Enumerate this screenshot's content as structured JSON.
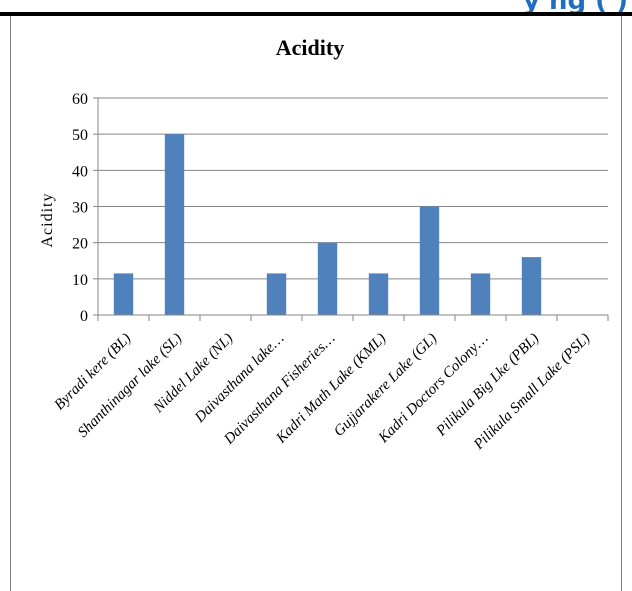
{
  "header": {
    "partial_text": "y ng (           )"
  },
  "colors": {
    "bar": "#4f81bd",
    "grid": "#868686",
    "header_text": "#1f6fc0"
  },
  "chart_data": {
    "type": "bar",
    "title": "Acidity",
    "xlabel": "",
    "ylabel": "Acidity",
    "ylim": [
      0,
      60
    ],
    "yticks": [
      0,
      10,
      20,
      30,
      40,
      50,
      60
    ],
    "grid": true,
    "legend": "none",
    "categories": [
      "Byradi kere (BL)",
      "Shanthinagar lake (SL)",
      "Niddel Lake (NL)",
      "Daivasthana lake…",
      "Daivasthana Fisheries…",
      "Kadri Math Lake (KML)",
      "Gujjarakere Lake (GL)",
      "Kadri Doctors Colony…",
      "Pilikula Big Lke (PBL)",
      "Pilikula Small Lake (PSL)"
    ],
    "values": [
      11.5,
      50,
      0,
      11.5,
      20,
      11.5,
      30,
      11.5,
      16,
      0
    ]
  }
}
